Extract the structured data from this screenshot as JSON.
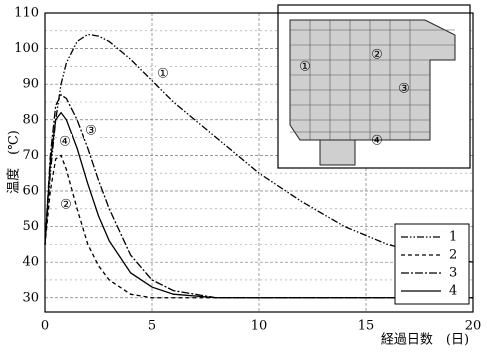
{
  "chart_data": {
    "type": "line",
    "xlabel": "経過日数　(日)",
    "ylabel": "温度　(℃)",
    "x": [
      0,
      0.25,
      0.5,
      0.75,
      1,
      1.5,
      2,
      2.5,
      3,
      4,
      5,
      6,
      8,
      10,
      12,
      14,
      16,
      18,
      20
    ],
    "series": [
      {
        "name": "1",
        "color": "#000000",
        "dash": "7,2,1.5,2,1.5,2",
        "values": [
          45,
          65,
          80,
          90,
          96,
          102,
          104,
          103.5,
          102,
          97,
          91,
          85,
          75,
          65,
          57,
          50,
          45,
          42,
          40
        ]
      },
      {
        "name": "2",
        "color": "#000000",
        "dash": "4,3",
        "values": [
          45,
          60,
          69,
          70,
          66,
          55,
          45,
          39,
          35,
          31,
          30,
          30,
          30,
          30,
          30,
          30,
          30,
          30,
          30
        ]
      },
      {
        "name": "3",
        "color": "#000000",
        "dash": "8,2,2,2",
        "values": [
          45,
          70,
          84,
          87,
          86,
          80,
          72,
          63,
          55,
          42,
          35,
          32,
          30,
          30,
          30,
          30,
          30,
          30,
          30
        ]
      },
      {
        "name": "4",
        "color": "#000000",
        "dash": "",
        "values": [
          45,
          68,
          80,
          82,
          80,
          72,
          62,
          53,
          46,
          37,
          33,
          31,
          30,
          30,
          30,
          30,
          30,
          30,
          30
        ]
      }
    ],
    "annotations": [
      "①",
      "②",
      "③",
      "④"
    ],
    "xlim": [
      0,
      20
    ],
    "xticks": [
      0,
      5,
      10,
      15,
      20
    ],
    "ylim": [
      26,
      110
    ],
    "yticks": [
      30,
      40,
      50,
      60,
      70,
      80,
      90,
      100,
      110
    ],
    "minor_yticks": [
      35,
      45,
      55,
      65,
      75,
      85,
      95,
      105
    ],
    "grid": true,
    "legend": "lower-right"
  },
  "inset": {
    "labels": [
      "①",
      "②",
      "③",
      "④"
    ]
  }
}
